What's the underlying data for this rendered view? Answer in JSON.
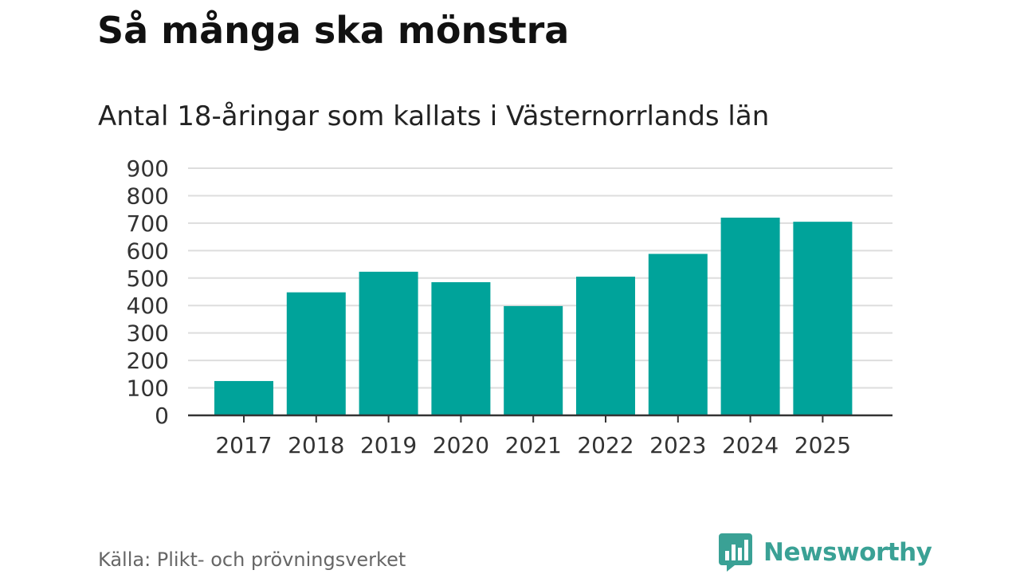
{
  "header": {
    "title": "Så många ska mönstra",
    "subtitle": "Antal 18-åringar som kallats i Västernorrlands län"
  },
  "footer": {
    "source": "Källa: Plikt- och prövningsverket",
    "brand": "Newsworthy",
    "brand_icon": "bar-chart-speech-bubble-icon"
  },
  "colors": {
    "bar": "#00a39a",
    "grid": "#dddddd",
    "axis": "#333333",
    "brand": "#3aa195"
  },
  "chart_data": {
    "type": "bar",
    "title": "Så många ska mönstra",
    "subtitle": "Antal 18-åringar som kallats i Västernorrlands län",
    "categories": [
      "2017",
      "2018",
      "2019",
      "2020",
      "2021",
      "2022",
      "2023",
      "2024",
      "2025"
    ],
    "values": [
      125,
      448,
      523,
      485,
      398,
      505,
      588,
      720,
      705
    ],
    "ylim": [
      0,
      900
    ],
    "yticks": [
      0,
      100,
      200,
      300,
      400,
      500,
      600,
      700,
      800,
      900
    ],
    "xlabel": "",
    "ylabel": "",
    "grid": true,
    "legend": "none"
  }
}
